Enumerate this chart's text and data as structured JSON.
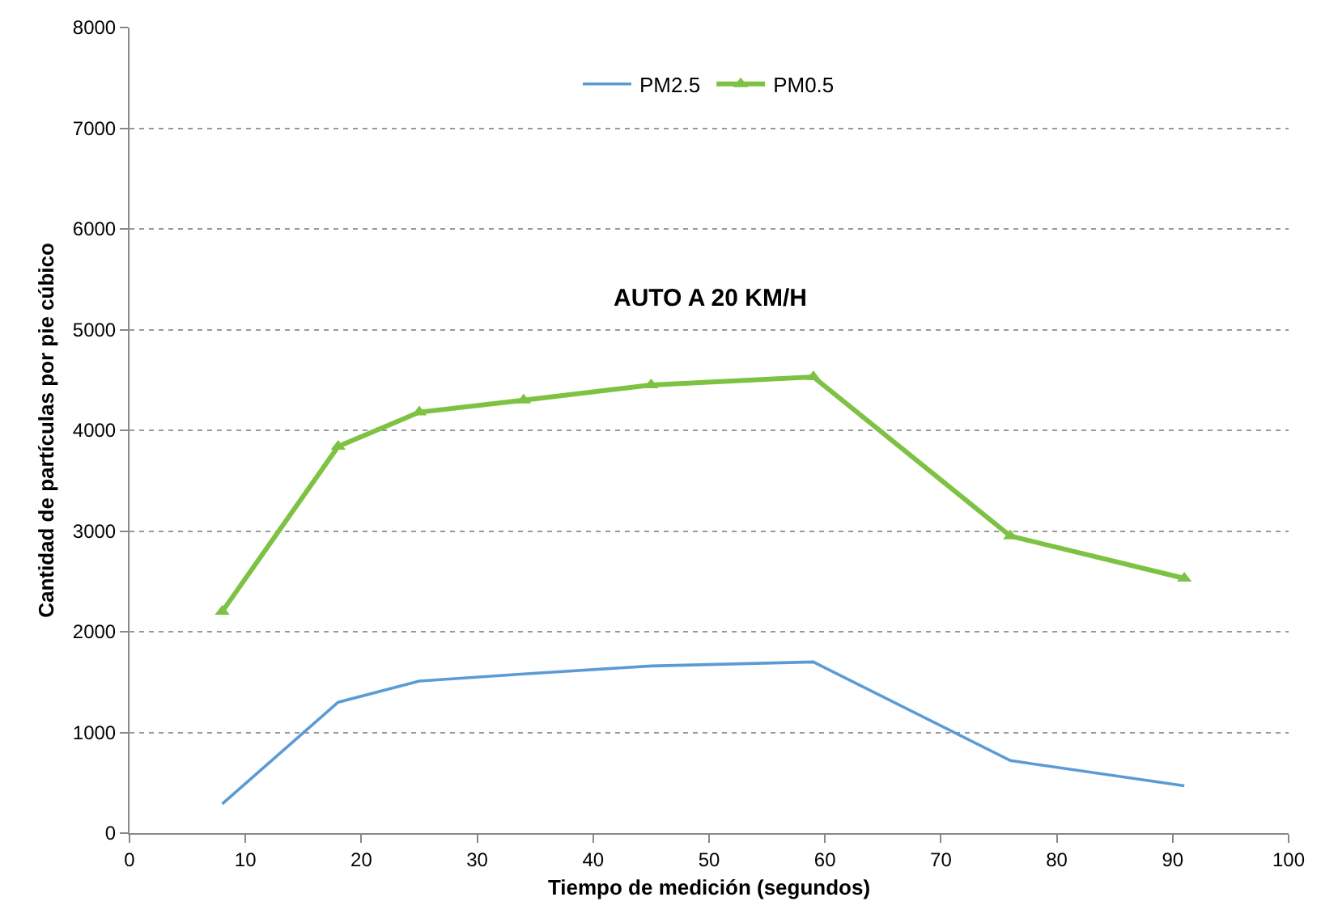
{
  "chart_data": {
    "type": "line",
    "xlabel": "Tiempo de medición (segundos)",
    "ylabel": "Cantidad de partículas por pie cúbico",
    "annotations": [
      "AUTO A 20 KM/H"
    ],
    "x": [
      8,
      18,
      25,
      34,
      45,
      59,
      76,
      91
    ],
    "series": [
      {
        "name": "PM2.5",
        "color": "#5b9bd5",
        "marker": "none",
        "values": [
          290,
          1300,
          1510,
          1580,
          1660,
          1700,
          720,
          470
        ]
      },
      {
        "name": "PM0.5",
        "color": "#7dc242",
        "marker": "triangle",
        "values": [
          2200,
          3840,
          4180,
          4300,
          4450,
          4530,
          2950,
          2530
        ]
      }
    ],
    "xlim": [
      0,
      100
    ],
    "xticks": [
      0,
      10,
      20,
      30,
      40,
      50,
      60,
      70,
      80,
      90,
      100
    ],
    "ylim": [
      0,
      8000
    ],
    "yticks": [
      0,
      1000,
      2000,
      3000,
      4000,
      5000,
      6000,
      7000,
      8000
    ],
    "grid": "y",
    "legend": "top"
  }
}
